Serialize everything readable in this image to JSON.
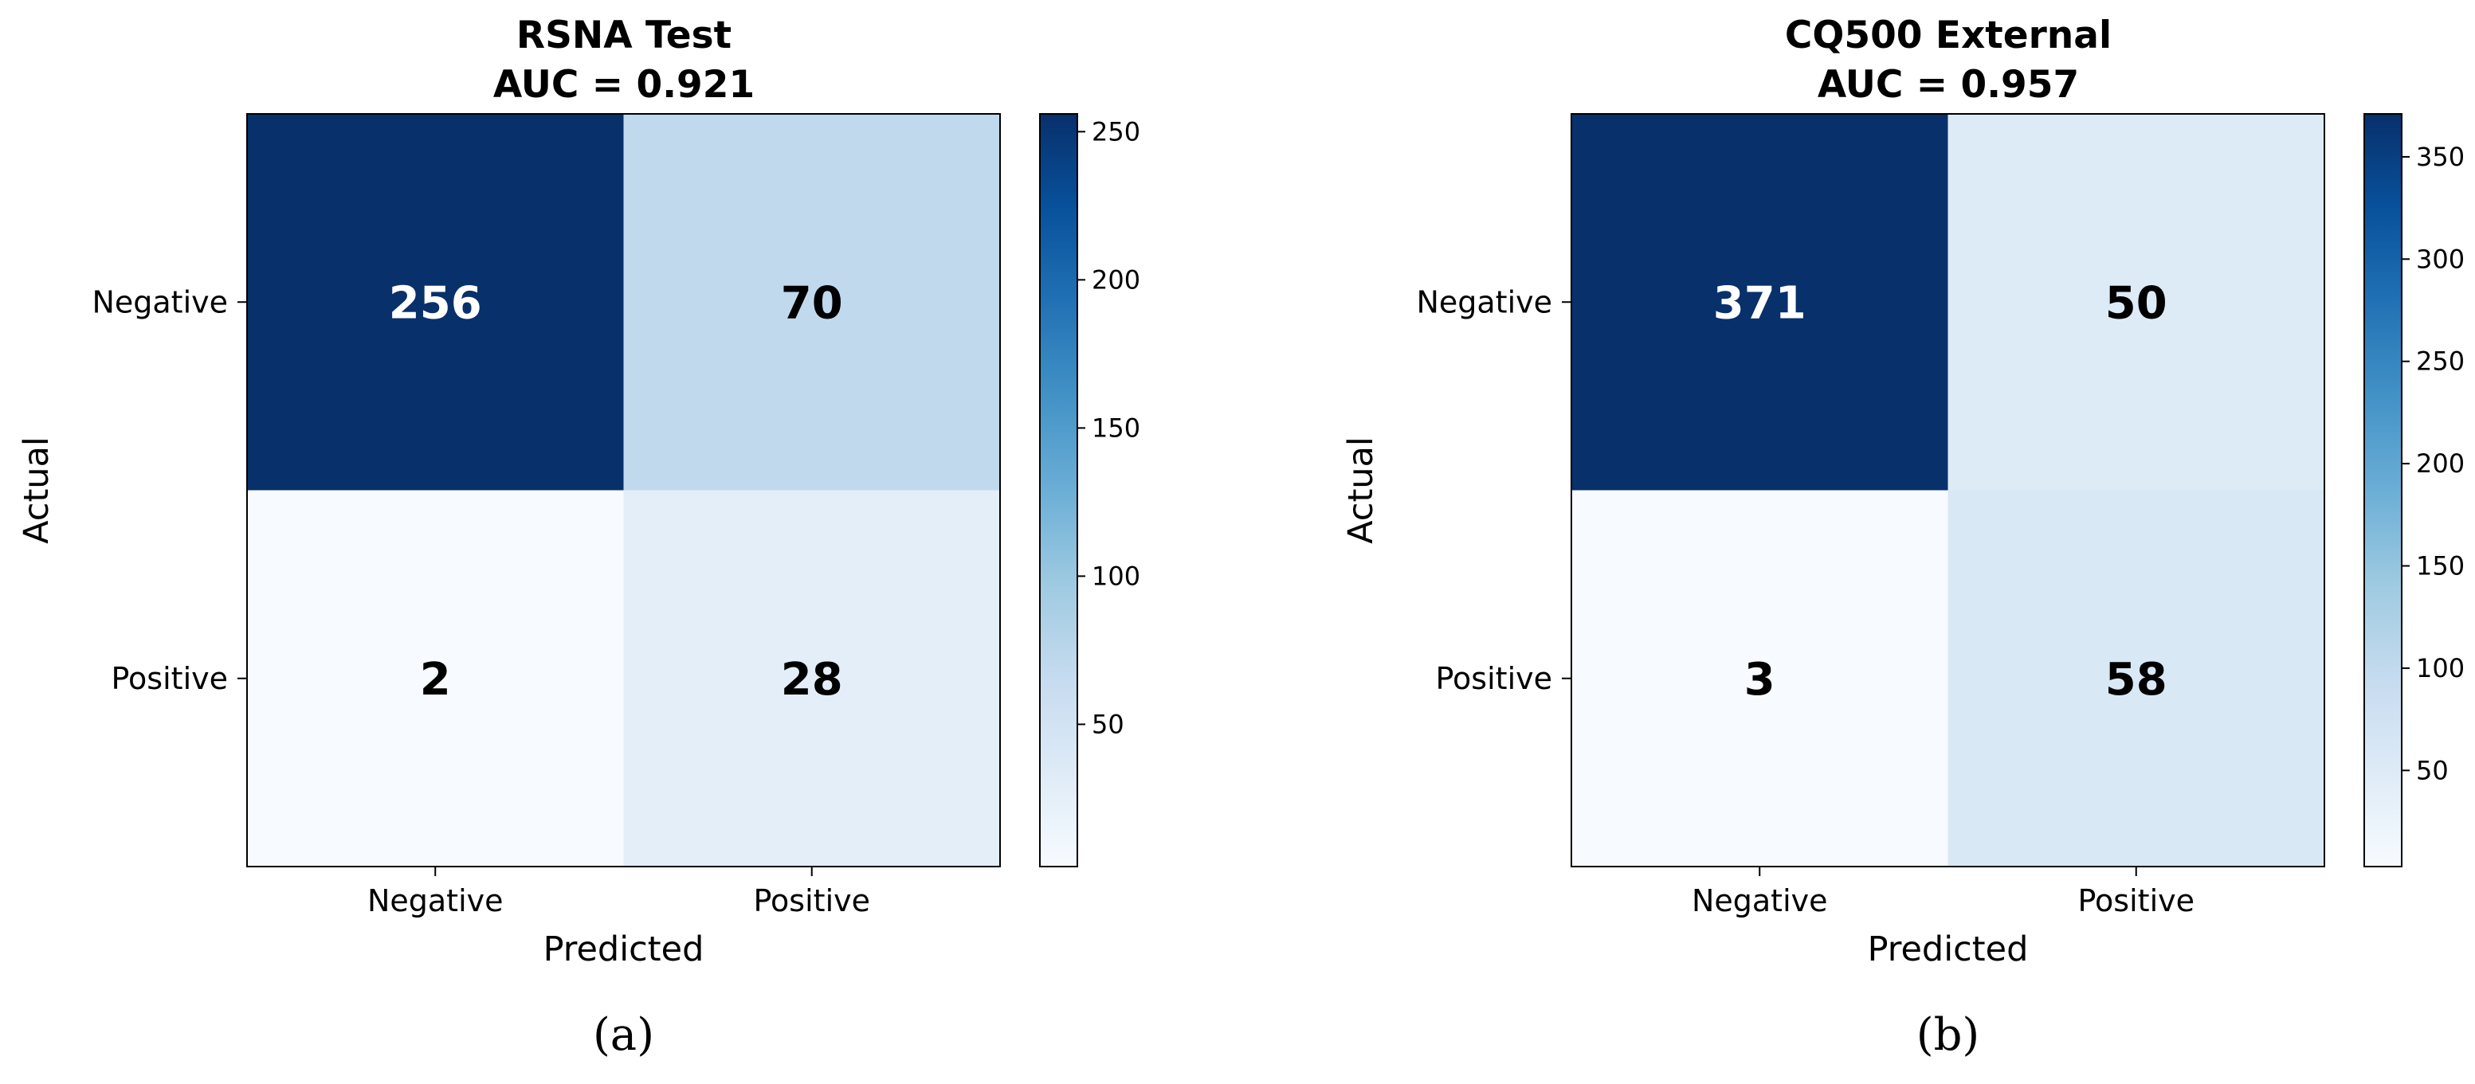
{
  "chart_data": [
    {
      "type": "heatmap",
      "title": "RSNA Test",
      "subtitle": "AUC = 0.921",
      "xlabel": "Predicted",
      "ylabel": "Actual",
      "x_categories": [
        "Negative",
        "Positive"
      ],
      "y_categories": [
        "Negative",
        "Positive"
      ],
      "matrix": [
        [
          256,
          70
        ],
        [
          2,
          28
        ]
      ],
      "colormap": "Blues",
      "color_range": [
        2,
        256
      ],
      "colorbar_ticks": [
        50,
        100,
        150,
        200,
        250
      ],
      "caption": "(a)"
    },
    {
      "type": "heatmap",
      "title": "CQ500 External",
      "subtitle": "AUC = 0.957",
      "xlabel": "Predicted",
      "ylabel": "Actual",
      "x_categories": [
        "Negative",
        "Positive"
      ],
      "y_categories": [
        "Negative",
        "Positive"
      ],
      "matrix": [
        [
          371,
          50
        ],
        [
          3,
          58
        ]
      ],
      "colormap": "Blues",
      "color_range": [
        3,
        371
      ],
      "colorbar_ticks": [
        50,
        100,
        150,
        200,
        250,
        300,
        350
      ],
      "caption": "(b)"
    }
  ]
}
